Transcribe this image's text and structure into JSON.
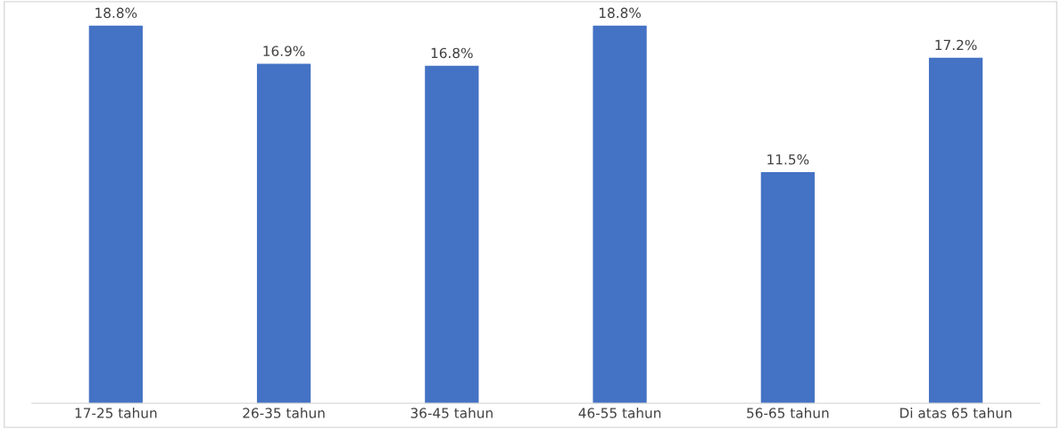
{
  "chart_data": {
    "type": "bar",
    "categories": [
      "17-25 tahun",
      "26-35 tahun",
      "36-45 tahun",
      "46-55 tahun",
      "56-65 tahun",
      "Di atas 65 tahun"
    ],
    "values": [
      18.8,
      16.9,
      16.8,
      18.8,
      11.5,
      17.2
    ],
    "value_labels": [
      "18.8%",
      "16.9%",
      "16.8%",
      "18.8%",
      "11.5%",
      "17.2%"
    ],
    "color": "#4472c4",
    "grid": false,
    "legend": false
  }
}
